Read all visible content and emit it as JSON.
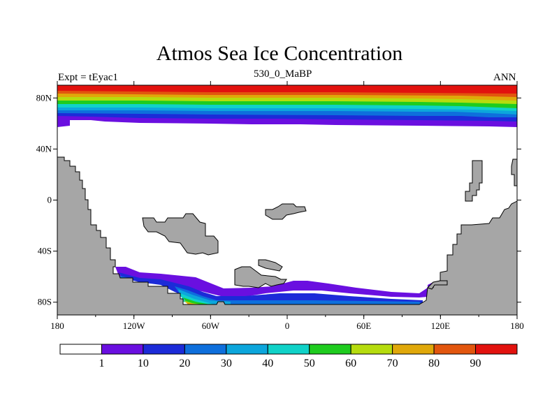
{
  "title": "Atmos Sea Ice Concentration",
  "left_label": "Expt = tEyac1",
  "center_label": "530_0_MaBP",
  "right_label": "ANN",
  "x_ticks": [
    "180",
    "120W",
    "60W",
    "0",
    "60E",
    "120E",
    "180"
  ],
  "y_ticks": [
    "80N",
    "40N",
    "0",
    "40S",
    "80S"
  ],
  "colorbar": {
    "labels": [
      "1",
      "10",
      "20",
      "30",
      "40",
      "50",
      "60",
      "70",
      "80",
      "90"
    ],
    "colors": [
      "#ffffff",
      "#6a0fe0",
      "#1c2bd8",
      "#0e6fdc",
      "#0ca6dc",
      "#10d2c8",
      "#1fcc1f",
      "#b6dc0e",
      "#e0a80a",
      "#e2560e",
      "#e2120e"
    ]
  },
  "land_color": "#a6a6a6"
}
